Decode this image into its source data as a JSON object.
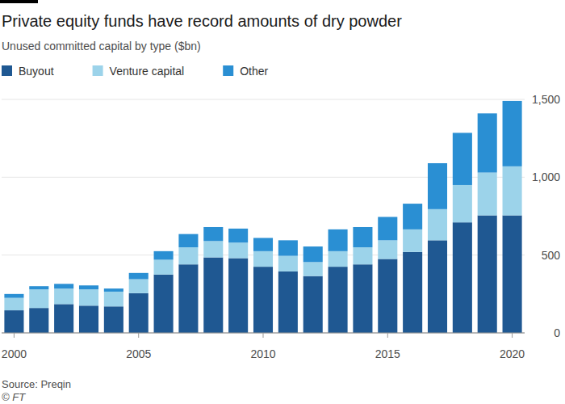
{
  "chart_data": {
    "type": "bar",
    "title": "Private equity funds have record amounts of dry powder",
    "subtitle": "Unused committed capital by type ($bn)",
    "source": "Source: Preqin",
    "credit": "© FT",
    "stacked": true,
    "grid": true,
    "legend": "top-left",
    "x": [
      2000,
      2001,
      2002,
      2003,
      2004,
      2005,
      2006,
      2007,
      2008,
      2009,
      2010,
      2011,
      2012,
      2013,
      2014,
      2015,
      2016,
      2017,
      2018,
      2019,
      2020
    ],
    "xlim": [
      1999.5,
      2020.5
    ],
    "xticks": [
      2000,
      2005,
      2010,
      2015,
      2020
    ],
    "ylim": [
      0,
      1500
    ],
    "yticks": [
      0,
      500,
      {
        "value": 1000,
        "label": "1,000"
      },
      {
        "value": 1500,
        "label": "1,500"
      }
    ],
    "series": [
      {
        "name": "Buyout",
        "color": "#1f5892",
        "values": [
          145,
          160,
          185,
          175,
          170,
          255,
          375,
          440,
          485,
          480,
          425,
          395,
          365,
          425,
          440,
          475,
          520,
          595,
          710,
          755,
          755
        ]
      },
      {
        "name": "Venture capital",
        "color": "#9cd3ea",
        "values": [
          80,
          120,
          100,
          105,
          95,
          90,
          95,
          110,
          105,
          100,
          100,
          100,
          90,
          100,
          110,
          120,
          145,
          200,
          240,
          275,
          315
        ]
      },
      {
        "name": "Other",
        "color": "#2a8fd3",
        "values": [
          25,
          20,
          30,
          25,
          20,
          40,
          55,
          85,
          90,
          90,
          85,
          100,
          100,
          140,
          130,
          150,
          165,
          295,
          335,
          380,
          420
        ]
      }
    ]
  }
}
